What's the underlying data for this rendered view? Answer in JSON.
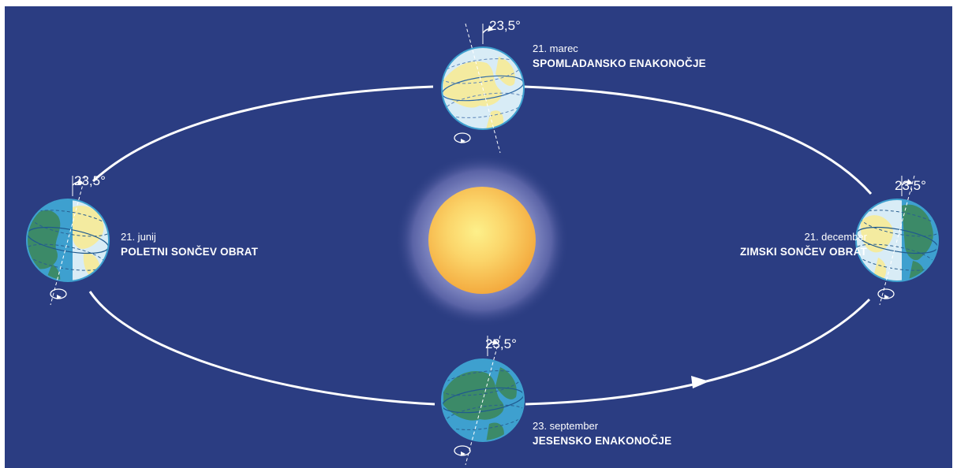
{
  "diagram": {
    "colors": {
      "background": "#2b3d82",
      "orbit": "#ffffff",
      "sun_core": "#f7c04a",
      "sun_glow": "#8a91c9",
      "ocean": "#3ea0cf",
      "land": "#3c8a68",
      "lit_ocean": "#d8ecf6",
      "lit_land": "#f4eba0"
    },
    "tilt_angle": "23,5°",
    "positions": {
      "spring": {
        "date": "21. marec",
        "name": "SPOMLADANSKO ENAKONOČJE",
        "angle": "23,5°"
      },
      "summer": {
        "date": "21. junij",
        "name": "POLETNI SONČEV OBRAT",
        "angle": "23,5°"
      },
      "autumn": {
        "date": "23. september",
        "name": "JESENSKO ENAKONOČJE",
        "angle": "23,5°"
      },
      "winter": {
        "date": "21. december",
        "name": "ZIMSKI SONČEV OBRAT",
        "angle": "23,5°"
      }
    },
    "sun_icon": "sun-icon",
    "direction_icon": "arrow-head-icon"
  }
}
